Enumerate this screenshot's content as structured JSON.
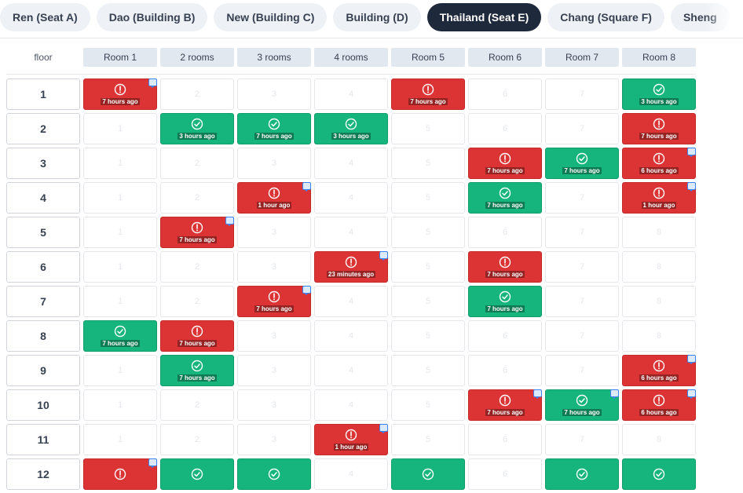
{
  "colors": {
    "alert": "#dc3434",
    "ok": "#16b57e",
    "active_tab": "#1e293b"
  },
  "tabs": [
    {
      "label": "Ren (Seat A)",
      "active": false
    },
    {
      "label": "Dao (Building B)",
      "active": false
    },
    {
      "label": "New (Building C)",
      "active": false
    },
    {
      "label": "Building (D)",
      "active": false
    },
    {
      "label": "Thailand (Seat E)",
      "active": true
    },
    {
      "label": "Chang (Square F)",
      "active": false
    },
    {
      "label": "Sheng",
      "active": false
    }
  ],
  "grid": {
    "floor_header": "floor",
    "rooms": [
      "Room 1",
      "2 rooms",
      "3 rooms",
      "4 rooms",
      "Room 5",
      "Room 6",
      "Room 7",
      "Room 8"
    ],
    "floors": [
      {
        "floor": "1",
        "cells": [
          {
            "room": "1",
            "status": "alert",
            "time": "7 hours ago",
            "note": true
          },
          {
            "room": "2"
          },
          {
            "room": "3"
          },
          {
            "room": "4"
          },
          {
            "room": "5",
            "status": "alert",
            "time": "7 hours ago",
            "note": false
          },
          {
            "room": "6"
          },
          {
            "room": "7"
          },
          {
            "room": "8",
            "status": "ok",
            "time": "3 hours ago",
            "note": false
          }
        ]
      },
      {
        "floor": "2",
        "cells": [
          {
            "room": "1"
          },
          {
            "room": "2",
            "status": "ok",
            "time": "3 hours ago",
            "note": false
          },
          {
            "room": "3",
            "status": "ok",
            "time": "7 hours ago",
            "note": false
          },
          {
            "room": "4",
            "status": "ok",
            "time": "3 hours ago",
            "note": false
          },
          {
            "room": "5"
          },
          {
            "room": "6"
          },
          {
            "room": "7"
          },
          {
            "room": "8",
            "status": "alert",
            "time": "7 hours ago",
            "note": false
          }
        ]
      },
      {
        "floor": "3",
        "cells": [
          {
            "room": "1"
          },
          {
            "room": "2"
          },
          {
            "room": "3"
          },
          {
            "room": "4"
          },
          {
            "room": "5"
          },
          {
            "room": "6",
            "status": "alert",
            "time": "7 hours ago",
            "note": false
          },
          {
            "room": "7",
            "status": "ok",
            "time": "7 hours ago",
            "note": false
          },
          {
            "room": "8",
            "status": "alert",
            "time": "6 hours ago",
            "note": true
          }
        ]
      },
      {
        "floor": "4",
        "cells": [
          {
            "room": "1"
          },
          {
            "room": "2"
          },
          {
            "room": "3",
            "status": "alert",
            "time": "1 hour ago",
            "note": true
          },
          {
            "room": "4"
          },
          {
            "room": "5"
          },
          {
            "room": "6",
            "status": "ok",
            "time": "7 hours ago",
            "note": false
          },
          {
            "room": "7"
          },
          {
            "room": "8",
            "status": "alert",
            "time": "1 hour ago",
            "note": true
          }
        ]
      },
      {
        "floor": "5",
        "cells": [
          {
            "room": "1"
          },
          {
            "room": "2",
            "status": "alert",
            "time": "7 hours ago",
            "note": true
          },
          {
            "room": "3"
          },
          {
            "room": "4"
          },
          {
            "room": "5"
          },
          {
            "room": "6"
          },
          {
            "room": "7"
          },
          {
            "room": "8"
          }
        ]
      },
      {
        "floor": "6",
        "cells": [
          {
            "room": "1"
          },
          {
            "room": "2"
          },
          {
            "room": "3"
          },
          {
            "room": "4",
            "status": "alert",
            "time": "23 minutes ago",
            "note": true
          },
          {
            "room": "5"
          },
          {
            "room": "6",
            "status": "alert",
            "time": "7 hours ago",
            "note": false
          },
          {
            "room": "7"
          },
          {
            "room": "8"
          }
        ]
      },
      {
        "floor": "7",
        "cells": [
          {
            "room": "1"
          },
          {
            "room": "2"
          },
          {
            "room": "3",
            "status": "alert",
            "time": "7 hours ago",
            "note": true
          },
          {
            "room": "4"
          },
          {
            "room": "5"
          },
          {
            "room": "6",
            "status": "ok",
            "time": "7 hours ago",
            "note": false
          },
          {
            "room": "7"
          },
          {
            "room": "8"
          }
        ]
      },
      {
        "floor": "8",
        "cells": [
          {
            "room": "1",
            "status": "ok",
            "time": "7 hours ago",
            "note": false
          },
          {
            "room": "2",
            "status": "alert",
            "time": "7 hours ago",
            "note": false
          },
          {
            "room": "3"
          },
          {
            "room": "4"
          },
          {
            "room": "5"
          },
          {
            "room": "6"
          },
          {
            "room": "7"
          },
          {
            "room": "8"
          }
        ]
      },
      {
        "floor": "9",
        "cells": [
          {
            "room": "1"
          },
          {
            "room": "2",
            "status": "ok",
            "time": "7 hours ago",
            "note": false
          },
          {
            "room": "3"
          },
          {
            "room": "4"
          },
          {
            "room": "5"
          },
          {
            "room": "6"
          },
          {
            "room": "7"
          },
          {
            "room": "8",
            "status": "alert",
            "time": "6 hours ago",
            "note": true
          }
        ]
      },
      {
        "floor": "10",
        "cells": [
          {
            "room": "1"
          },
          {
            "room": "2"
          },
          {
            "room": "3"
          },
          {
            "room": "4"
          },
          {
            "room": "5"
          },
          {
            "room": "6",
            "status": "alert",
            "time": "7 hours ago",
            "note": true
          },
          {
            "room": "7",
            "status": "ok",
            "time": "7 hours ago",
            "note": true
          },
          {
            "room": "8",
            "status": "alert",
            "time": "6 hours ago",
            "note": true
          }
        ]
      },
      {
        "floor": "11",
        "cells": [
          {
            "room": "1"
          },
          {
            "room": "2"
          },
          {
            "room": "3"
          },
          {
            "room": "4",
            "status": "alert",
            "time": "1 hour ago",
            "note": true
          },
          {
            "room": "5"
          },
          {
            "room": "6"
          },
          {
            "room": "7"
          },
          {
            "room": "8"
          }
        ]
      },
      {
        "floor": "12",
        "cells": [
          {
            "room": "1",
            "status": "alert",
            "time": "",
            "note": true
          },
          {
            "room": "2",
            "status": "ok",
            "time": "",
            "note": false
          },
          {
            "room": "3",
            "status": "ok",
            "time": "",
            "note": false
          },
          {
            "room": "4"
          },
          {
            "room": "5",
            "status": "ok",
            "time": "",
            "note": false
          },
          {
            "room": "6"
          },
          {
            "room": "7",
            "status": "ok",
            "time": "",
            "note": false
          },
          {
            "room": "8",
            "status": "ok",
            "time": "",
            "note": false
          }
        ]
      }
    ]
  }
}
